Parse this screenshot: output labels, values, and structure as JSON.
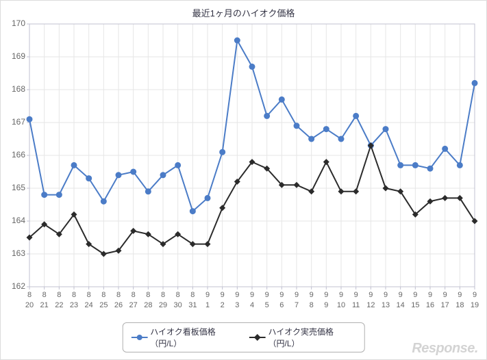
{
  "chart": {
    "type": "line",
    "title": "最近1ヶ月のハイオク価格",
    "title_fontsize": 13,
    "title_color": "#333344",
    "background_color": "#ffffff",
    "plot_background_color": "#ffffff",
    "border_color": "#dcdcdc",
    "grid_color": "#e6e6e6",
    "axis_line_color": "#c0c0d0",
    "axis_tick_color": "#c0c0d0",
    "x_labels_top": [
      "8",
      "8",
      "8",
      "8",
      "8",
      "8",
      "8",
      "8",
      "8",
      "8",
      "8",
      "8",
      "9",
      "9",
      "9",
      "9",
      "9",
      "9",
      "9",
      "9",
      "9",
      "9",
      "9",
      "9",
      "9",
      "9",
      "9",
      "9",
      "9",
      "9",
      "9"
    ],
    "x_labels_bottom": [
      "20",
      "21",
      "22",
      "23",
      "24",
      "25",
      "26",
      "27",
      "28",
      "29",
      "30",
      "31",
      "1",
      "2",
      "3",
      "4",
      "5",
      "6",
      "7",
      "8",
      "9",
      "10",
      "11",
      "12",
      "13",
      "14",
      "15",
      "16",
      "17",
      "18",
      "19"
    ],
    "x_label_fontsize": 11,
    "x_label_color": "#666666",
    "ylim": [
      162,
      170
    ],
    "ytick_step": 1,
    "y_label_fontsize": 12,
    "y_label_color": "#666666",
    "series": [
      {
        "name": "ハイオク看板価格（円/L）",
        "color": "#4b7cc7",
        "line_width": 2,
        "marker": "circle-filled",
        "marker_size": 4.5,
        "values": [
          167.1,
          164.8,
          164.8,
          165.7,
          165.3,
          164.6,
          165.4,
          165.5,
          164.9,
          165.4,
          165.7,
          164.3,
          164.7,
          166.1,
          169.5,
          168.7,
          167.2,
          167.7,
          166.9,
          166.5,
          166.8,
          166.5,
          167.2,
          166.3,
          166.8,
          165.7,
          165.7,
          165.6,
          166.2,
          165.7,
          168.2
        ]
      },
      {
        "name": "ハイオク実売価格（円/L）",
        "color": "#2b2b2b",
        "line_width": 2,
        "marker": "diamond-filled",
        "marker_size": 4.5,
        "values": [
          163.5,
          163.9,
          163.6,
          164.2,
          163.3,
          163.0,
          163.1,
          163.7,
          163.6,
          163.3,
          163.6,
          163.3,
          163.3,
          164.4,
          165.2,
          165.8,
          165.6,
          165.1,
          165.1,
          164.9,
          165.8,
          164.9,
          164.9,
          166.3,
          165.0,
          164.9,
          164.2,
          164.6,
          164.7,
          164.7,
          164.0
        ]
      }
    ],
    "legend": {
      "position": "bottom-center",
      "border_color": "#b0b0b0",
      "border_radius": 6,
      "background": "#ffffff",
      "fontsize": 12,
      "text_color": "#333344"
    }
  },
  "watermark": "Response."
}
